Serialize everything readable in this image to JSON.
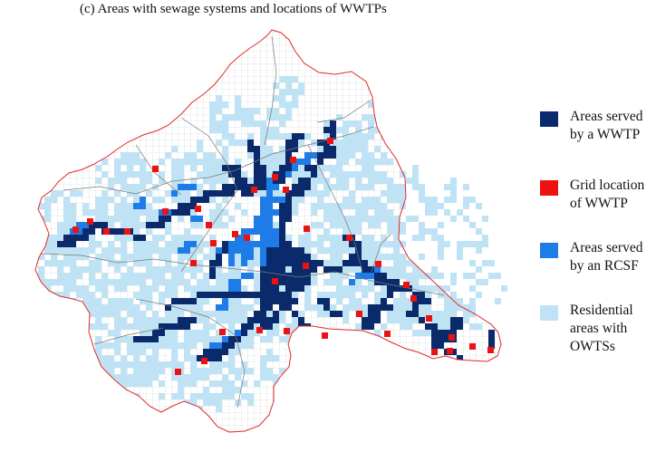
{
  "figure": {
    "title": "(c) Areas with sewage systems and locations of WWTPs"
  },
  "legend": {
    "items": [
      {
        "key": "wwtp_area",
        "label": "Areas served\nby a WWTP",
        "color": "#0b2a6b"
      },
      {
        "key": "wwtp_grid",
        "label": "Grid location\nof WWTP",
        "color": "#ee1111"
      },
      {
        "key": "rcsf_area",
        "label": "Areas served\nby an RCSF",
        "color": "#1e7ce8"
      },
      {
        "key": "owts_area",
        "label": "Residential\nareas with\nOWTSs",
        "color": "#bfe3f4"
      }
    ]
  },
  "map": {
    "region_fill": "#ffffff",
    "boundary_color": "#e02a2a",
    "grid_line_color": "#cfd3d8",
    "sub_boundary_color": "#7a7a7a",
    "grid_lines_shown": true
  }
}
